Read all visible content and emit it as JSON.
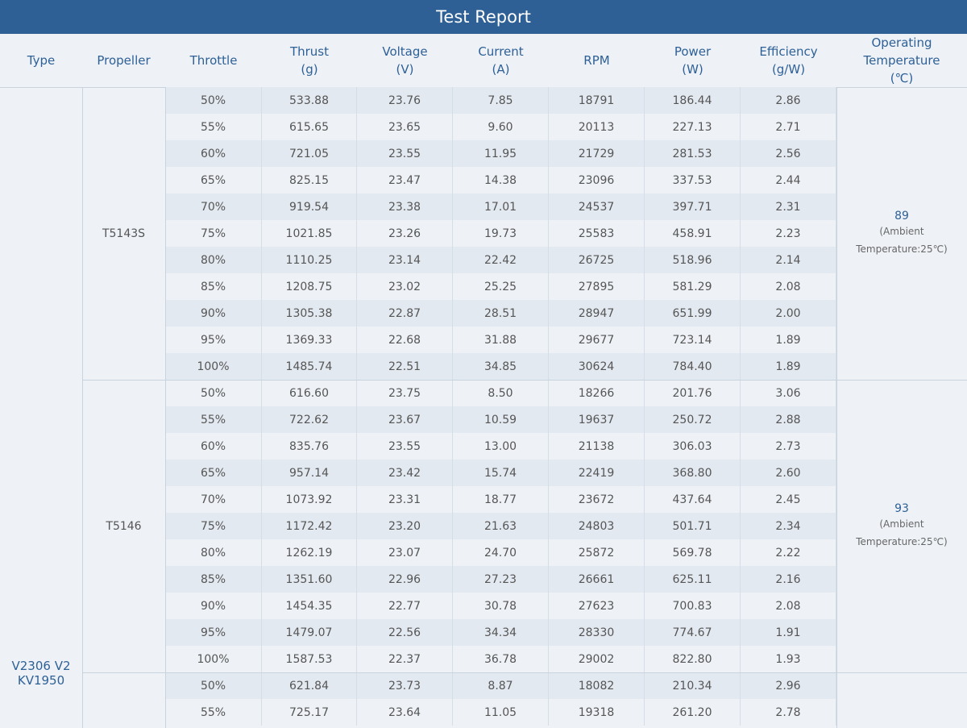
{
  "header": {
    "title": "Test Report"
  },
  "columns": [
    [
      "Type"
    ],
    [
      "Propeller"
    ],
    [
      "Throttle"
    ],
    [
      "Thrust",
      "(g)"
    ],
    [
      "Voltage",
      "(V)"
    ],
    [
      "Current",
      "(A)"
    ],
    [
      "RPM"
    ],
    [
      "Power",
      "(W)"
    ],
    [
      "Efficiency",
      "(g/W)"
    ],
    [
      "Operating",
      "Temperature",
      "(℃)"
    ]
  ],
  "type": [
    "V2306 V2",
    "KV1950"
  ],
  "groups": [
    {
      "propeller": "T5143S",
      "temperature": "89",
      "temperature_note": [
        "(Ambient",
        "Temperature:25℃)"
      ],
      "rows": [
        [
          "50%",
          "533.88",
          "23.76",
          "7.85",
          "18791",
          "186.44",
          "2.86"
        ],
        [
          "55%",
          "615.65",
          "23.65",
          "9.60",
          "20113",
          "227.13",
          "2.71"
        ],
        [
          "60%",
          "721.05",
          "23.55",
          "11.95",
          "21729",
          "281.53",
          "2.56"
        ],
        [
          "65%",
          "825.15",
          "23.47",
          "14.38",
          "23096",
          "337.53",
          "2.44"
        ],
        [
          "70%",
          "919.54",
          "23.38",
          "17.01",
          "24537",
          "397.71",
          "2.31"
        ],
        [
          "75%",
          "1021.85",
          "23.26",
          "19.73",
          "25583",
          "458.91",
          "2.23"
        ],
        [
          "80%",
          "1110.25",
          "23.14",
          "22.42",
          "26725",
          "518.96",
          "2.14"
        ],
        [
          "85%",
          "1208.75",
          "23.02",
          "25.25",
          "27895",
          "581.29",
          "2.08"
        ],
        [
          "90%",
          "1305.38",
          "22.87",
          "28.51",
          "28947",
          "651.99",
          "2.00"
        ],
        [
          "95%",
          "1369.33",
          "22.68",
          "31.88",
          "29677",
          "723.14",
          "1.89"
        ],
        [
          "100%",
          "1485.74",
          "22.51",
          "34.85",
          "30624",
          "784.40",
          "1.89"
        ]
      ]
    },
    {
      "propeller": "T5146",
      "temperature": "93",
      "temperature_note": [
        "(Ambient",
        "Temperature:25℃)"
      ],
      "rows": [
        [
          "50%",
          "616.60",
          "23.75",
          "8.50",
          "18266",
          "201.76",
          "3.06"
        ],
        [
          "55%",
          "722.62",
          "23.67",
          "10.59",
          "19637",
          "250.72",
          "2.88"
        ],
        [
          "60%",
          "835.76",
          "23.55",
          "13.00",
          "21138",
          "306.03",
          "2.73"
        ],
        [
          "65%",
          "957.14",
          "23.42",
          "15.74",
          "22419",
          "368.80",
          "2.60"
        ],
        [
          "70%",
          "1073.92",
          "23.31",
          "18.77",
          "23672",
          "437.64",
          "2.45"
        ],
        [
          "75%",
          "1172.42",
          "23.20",
          "21.63",
          "24803",
          "501.71",
          "2.34"
        ],
        [
          "80%",
          "1262.19",
          "23.07",
          "24.70",
          "25872",
          "569.78",
          "2.22"
        ],
        [
          "85%",
          "1351.60",
          "22.96",
          "27.23",
          "26661",
          "625.11",
          "2.16"
        ],
        [
          "90%",
          "1454.35",
          "22.77",
          "30.78",
          "27623",
          "700.83",
          "2.08"
        ],
        [
          "95%",
          "1479.07",
          "22.56",
          "34.34",
          "28330",
          "774.67",
          "1.91"
        ],
        [
          "100%",
          "1587.53",
          "22.37",
          "36.78",
          "29002",
          "822.80",
          "1.93"
        ]
      ]
    },
    {
      "rows": [
        [
          "50%",
          "621.84",
          "23.73",
          "8.87",
          "18082",
          "210.34",
          "2.96"
        ],
        [
          "55%",
          "725.17",
          "23.64",
          "11.05",
          "19318",
          "261.20",
          "2.78"
        ]
      ]
    }
  ]
}
